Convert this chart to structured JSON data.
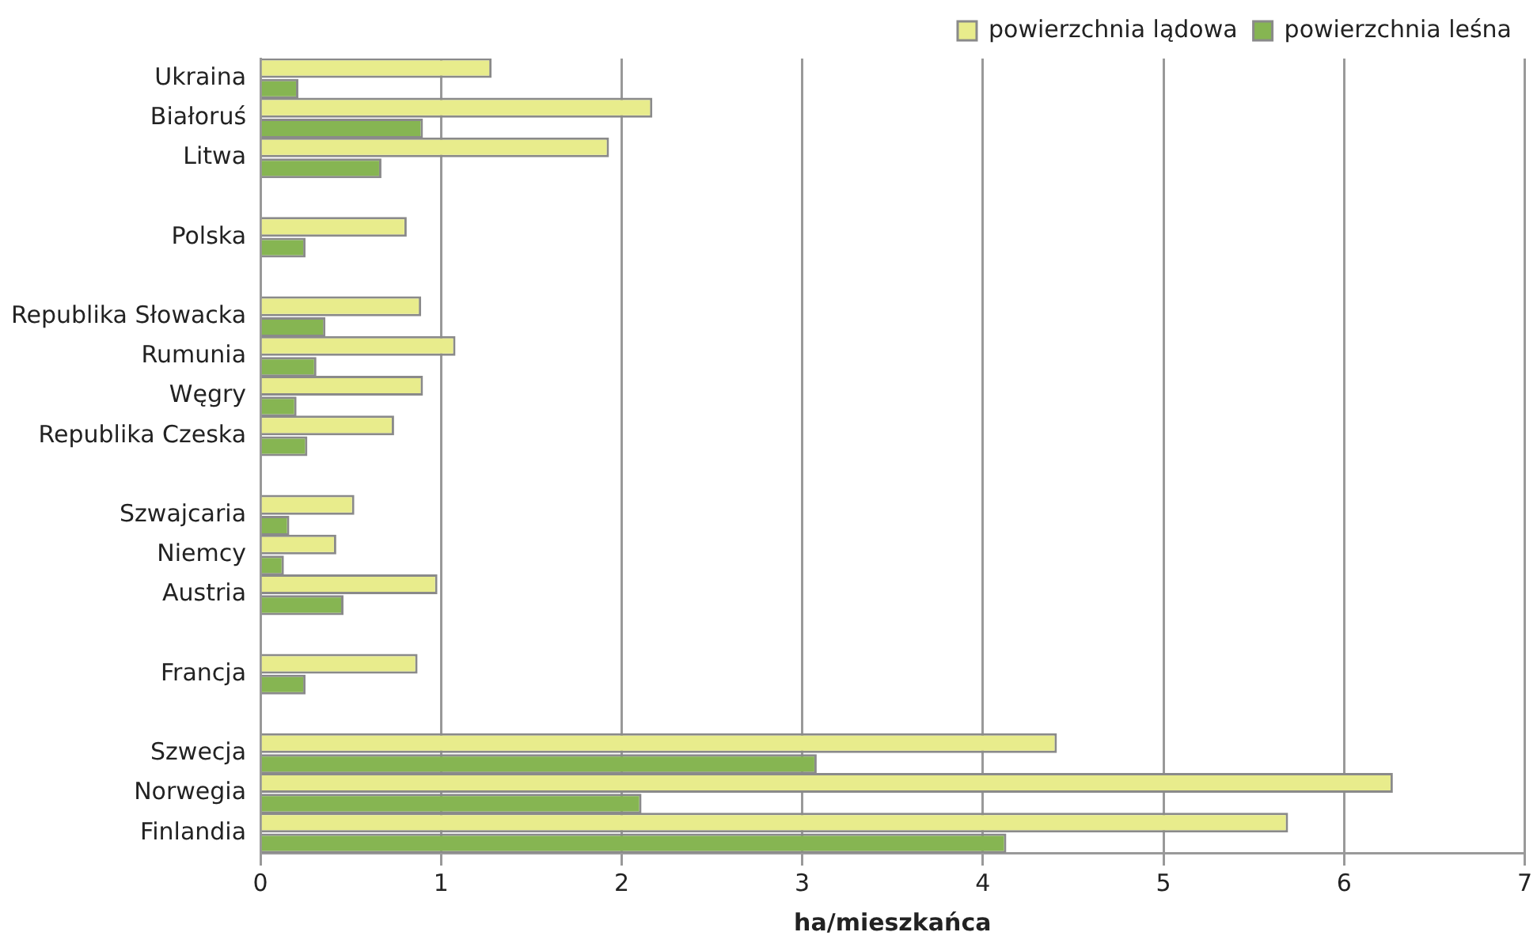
{
  "chart_data": {
    "type": "bar",
    "orientation": "horizontal",
    "xlabel": "ha/mieszkańca",
    "categories": [
      "Ukraina",
      "Białoruś",
      "Litwa",
      null,
      "Polska",
      null,
      "Republika Słowacka",
      "Rumunia",
      "Węgry",
      "Republika Czeska",
      null,
      "Szwajcaria",
      "Niemcy",
      "Austria",
      null,
      "Francja",
      null,
      "Szwecja",
      "Norwegia",
      "Finlandia"
    ],
    "series": [
      {
        "name": "powierzchnia lądowa",
        "color": "#e8ec8c",
        "values": [
          1.28,
          2.17,
          1.93,
          null,
          0.81,
          null,
          0.89,
          1.08,
          0.9,
          0.74,
          null,
          0.52,
          0.42,
          0.98,
          null,
          0.87,
          null,
          4.41,
          6.27,
          5.69
        ]
      },
      {
        "name": "powierzchnia leśna",
        "color": "#86b552",
        "values": [
          0.21,
          0.9,
          0.67,
          null,
          0.25,
          null,
          0.36,
          0.31,
          0.2,
          0.26,
          null,
          0.16,
          0.13,
          0.46,
          null,
          0.25,
          null,
          3.08,
          2.11,
          4.13
        ]
      }
    ],
    "xlim": [
      0,
      7
    ],
    "xticks": [
      0,
      1,
      2,
      3,
      4,
      5,
      6,
      7
    ],
    "grid": "x",
    "legend": "top right"
  }
}
